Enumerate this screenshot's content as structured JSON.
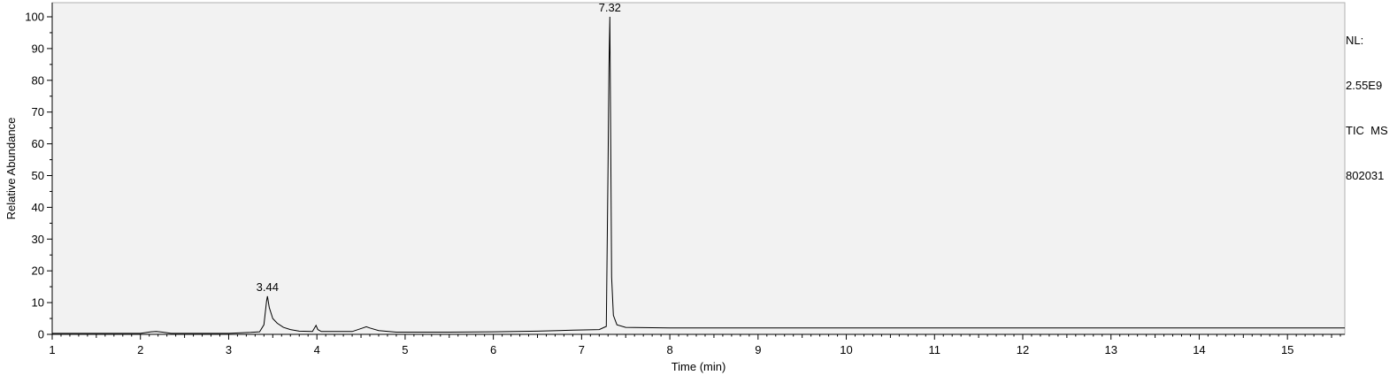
{
  "chart_data": {
    "type": "line",
    "title": "",
    "xlabel": "Time (min)",
    "ylabel": "Relative Abundance",
    "xlim": [
      1,
      15.65
    ],
    "ylim": [
      0,
      100
    ],
    "x_ticks": [
      1,
      2,
      3,
      4,
      5,
      6,
      7,
      8,
      9,
      10,
      11,
      12,
      13,
      14,
      15
    ],
    "y_ticks": [
      0,
      10,
      20,
      30,
      40,
      50,
      60,
      70,
      80,
      90,
      100
    ],
    "grid": false,
    "background": "#f2f2f2",
    "line_color": "#000000",
    "peak_labels": [
      {
        "x": 3.44,
        "y": 12,
        "text": "3.44"
      },
      {
        "x": 7.32,
        "y": 100,
        "text": "7.32"
      }
    ],
    "series": [
      {
        "x": [
          1.0,
          2.0,
          2.12,
          2.18,
          2.25,
          2.35,
          3.0,
          3.25,
          3.35,
          3.4,
          3.43,
          3.44,
          3.46,
          3.5,
          3.55,
          3.62,
          3.7,
          3.8,
          3.95,
          3.99,
          4.01,
          4.05,
          4.2,
          4.4,
          4.52,
          4.56,
          4.6,
          4.7,
          4.9,
          5.5,
          6.0,
          6.5,
          6.9,
          7.2,
          7.28,
          7.3,
          7.31,
          7.32,
          7.33,
          7.34,
          7.36,
          7.4,
          7.5,
          8.0,
          10.0,
          12.0,
          14.0,
          15.65
        ],
        "y": [
          0.3,
          0.3,
          0.8,
          0.9,
          0.7,
          0.3,
          0.3,
          0.6,
          0.8,
          3.0,
          10.5,
          12.0,
          8.5,
          5.0,
          3.5,
          2.2,
          1.5,
          1.0,
          0.9,
          2.8,
          1.5,
          0.9,
          0.9,
          0.9,
          2.0,
          2.4,
          2.0,
          1.2,
          0.7,
          0.7,
          0.8,
          1.0,
          1.3,
          1.5,
          2.5,
          54.0,
          84.0,
          100.0,
          60.0,
          18.0,
          6.0,
          3.0,
          2.2,
          2.0,
          2.0,
          2.0,
          2.0,
          2.0
        ]
      }
    ]
  },
  "info": {
    "nl_label": "NL:",
    "nl_value": "2.55E9",
    "trace_label": "TIC  MS",
    "file_id": "802031"
  }
}
